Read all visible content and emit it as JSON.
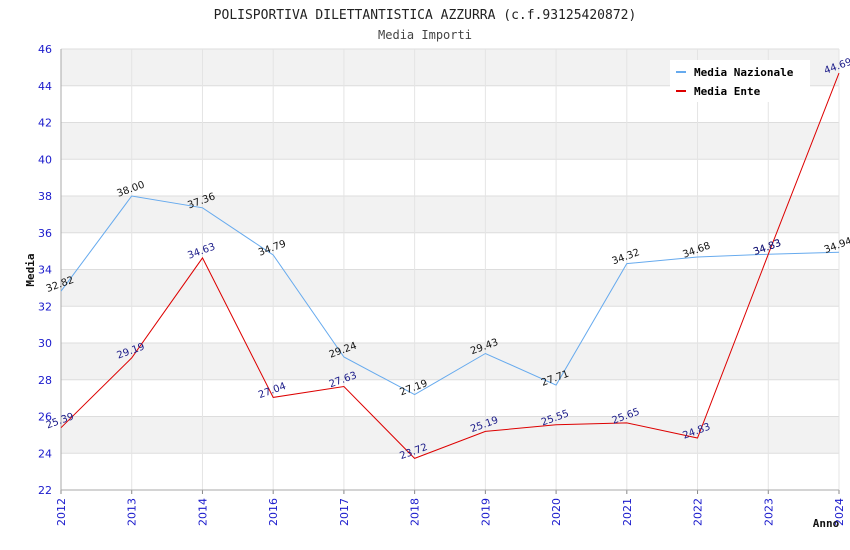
{
  "chart_data": {
    "type": "line",
    "title": "POLISPORTIVA DILETTANTISTICA AZZURRA (c.f.93125420872)",
    "subtitle": "Media Importi",
    "xlabel": "Anno",
    "ylabel": "Media",
    "ylim": [
      22,
      46
    ],
    "yticks": [
      22,
      24,
      26,
      28,
      30,
      32,
      34,
      36,
      38,
      40,
      42,
      44,
      46
    ],
    "categories": [
      "2012",
      "2013",
      "2014",
      "2016",
      "2017",
      "2018",
      "2019",
      "2020",
      "2021",
      "2022",
      "2023",
      "2024"
    ],
    "grid": true,
    "legend_position": "top-right",
    "series": [
      {
        "name": "Media Nazionale",
        "color": "#66aaee",
        "label_color": "#111111",
        "values": [
          32.82,
          38.0,
          37.36,
          34.79,
          29.24,
          27.19,
          29.43,
          27.71,
          34.32,
          34.68,
          34.83,
          34.94
        ],
        "labels": [
          "32.82",
          "38.00",
          "37.36",
          "34.79",
          "29.24",
          "27.19",
          "29.43",
          "27.71",
          "34.32",
          "34.68",
          "34.83",
          "34.94"
        ]
      },
      {
        "name": "Media Ente",
        "color": "#dd0000",
        "label_color": "#1a1a88",
        "values": [
          25.39,
          29.19,
          34.63,
          27.04,
          27.63,
          23.72,
          25.19,
          25.55,
          25.65,
          24.83,
          34.83,
          44.69
        ],
        "labels": [
          "25.39",
          "29.19",
          "34.63",
          "27.04",
          "27.63",
          "23.72",
          "25.19",
          "25.55",
          "25.65",
          "24.83",
          "34.83",
          "44.69"
        ]
      }
    ]
  }
}
